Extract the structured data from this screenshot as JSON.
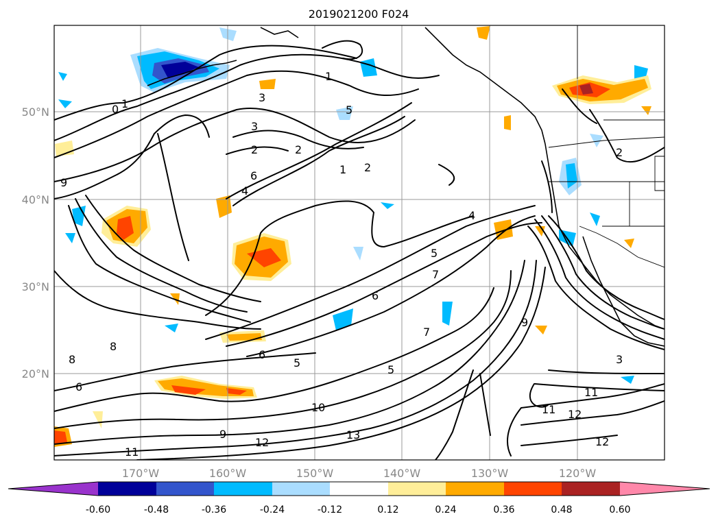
{
  "title": "2019021200 F024",
  "lat_labels": [
    "50°N",
    "40°N",
    "30°N",
    "20°N"
  ],
  "lon_labels": [
    "170°W",
    "160°W",
    "150°W",
    "140°W",
    "130°W",
    "120°W"
  ],
  "colorbar": {
    "ticks": [
      "-0.60",
      "-0.48",
      "-0.36",
      "-0.24",
      "-0.12",
      "0.12",
      "0.24",
      "0.36",
      "0.48",
      "0.60"
    ],
    "colors": [
      "#9933cc",
      "#000099",
      "#3355cc",
      "#00bbff",
      "#aaddff",
      "#ffffff",
      "#ffee99",
      "#ffaa00",
      "#ff4400",
      "#aa2222",
      "#ff88aa"
    ]
  },
  "contour_labels": [
    "0",
    "1",
    "1",
    "1",
    "2",
    "2",
    "2",
    "2",
    "3",
    "3",
    "3",
    "4",
    "4",
    "5",
    "5",
    "5",
    "5",
    "6",
    "6",
    "6",
    "6",
    "7",
    "7",
    "8",
    "8",
    "9",
    "9",
    "9",
    "10",
    "11",
    "11",
    "11",
    "12",
    "12",
    "12",
    "13"
  ]
}
